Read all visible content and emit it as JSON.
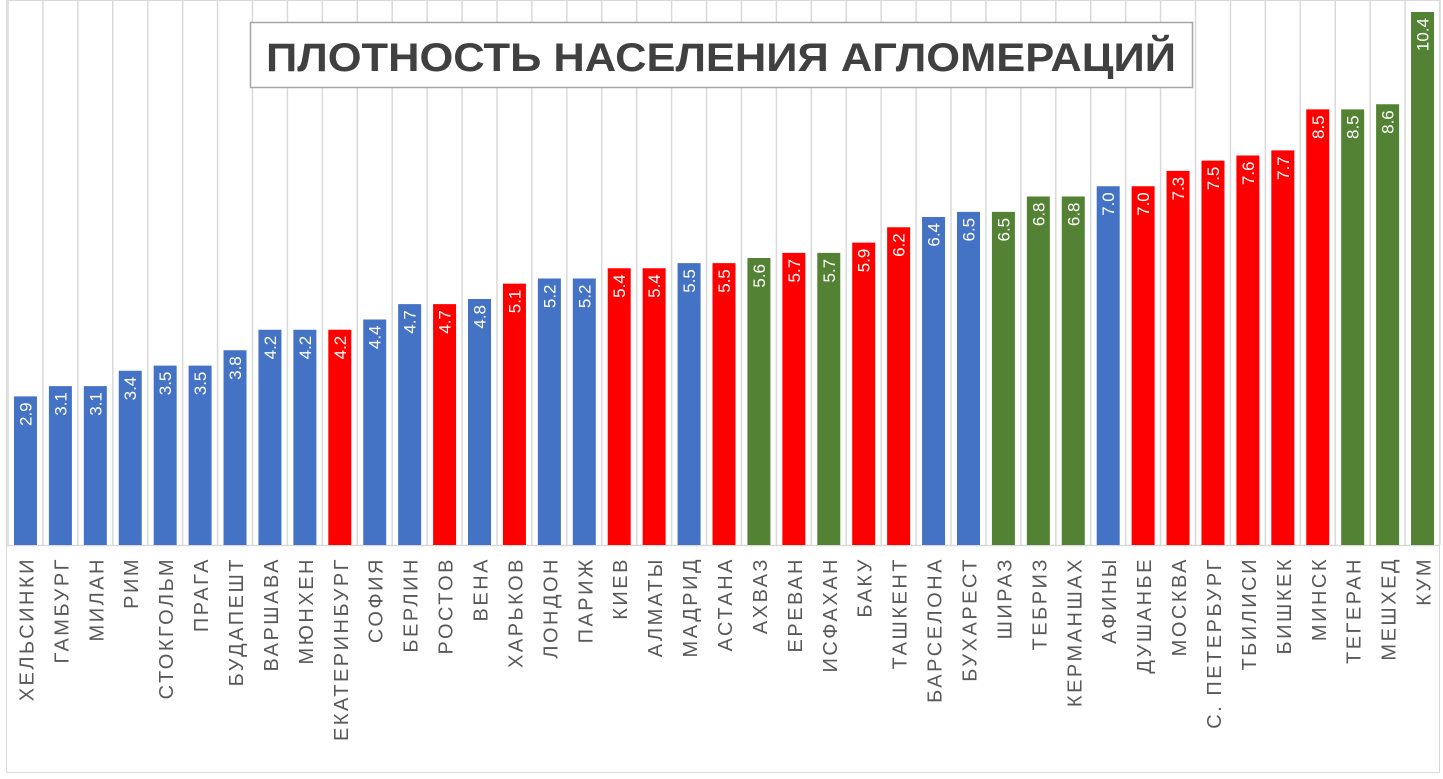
{
  "chart_data": {
    "type": "bar",
    "title": "ПЛОТНОСТЬ НАСЕЛЕНИЯ АГЛОМЕРАЦИЙ",
    "xlabel": "",
    "ylabel": "",
    "ylim": [
      0,
      10.4
    ],
    "grid": "vertical",
    "legend": "none",
    "colors": {
      "blue": "#4472C4",
      "red": "#FF0000",
      "green": "#548235"
    },
    "categories": [
      "ХЕЛЬСИНКИ",
      "ГАМБУРГ",
      "МИЛАН",
      "РИМ",
      "СТОКГОЛЬМ",
      "ПРАГА",
      "БУДАПЕШТ",
      "ВАРШАВА",
      "МЮНХЕН",
      "ЕКАТЕРИНБУРГ",
      "СОФИЯ",
      "БЕРЛИН",
      "РОСТОВ",
      "ВЕНА",
      "ХАРЬКОВ",
      "ЛОНДОН",
      "ПАРИЖ",
      "КИЕВ",
      "АЛМАТЫ",
      "МАДРИД",
      "АСТАНА",
      "АХВАЗ",
      "ЕРЕВАН",
      "ИСФАХАН",
      "БАКУ",
      "ТАШКЕНТ",
      "БАРСЕЛОНА",
      "БУХАРЕСТ",
      "ШИРАЗ",
      "ТЕБРИЗ",
      "КЕРМАНШАХ",
      "АФИНЫ",
      "ДУШАНБЕ",
      "МОСКВА",
      "С. ПЕТЕРБУРГ",
      "ТБИЛИСИ",
      "БИШКЕК",
      "МИНСК",
      "ТЕГЕРАН",
      "МЕШХЕД",
      "КУМ"
    ],
    "values": [
      2.9,
      3.1,
      3.1,
      3.4,
      3.5,
      3.5,
      3.8,
      4.2,
      4.2,
      4.2,
      4.4,
      4.7,
      4.7,
      4.8,
      5.1,
      5.2,
      5.2,
      5.4,
      5.4,
      5.5,
      5.5,
      5.6,
      5.7,
      5.7,
      5.9,
      6.2,
      6.4,
      6.5,
      6.5,
      6.8,
      6.8,
      7.0,
      7.0,
      7.3,
      7.5,
      7.6,
      7.7,
      8.5,
      8.5,
      8.6,
      10.4
    ],
    "value_labels": [
      "2.9",
      "3.1",
      "3.1",
      "3.4",
      "3.5",
      "3.5",
      "3.8",
      "4.2",
      "4.2",
      "4.2",
      "4.4",
      "4.7",
      "4.7",
      "4.8",
      "5.1",
      "5.2",
      "5.2",
      "5.4",
      "5.4",
      "5.5",
      "5.5",
      "5.6",
      "5.7",
      "5.7",
      "5.9",
      "6.2",
      "6.4",
      "6.5",
      "6.5",
      "6.8",
      "6.8",
      "7.0",
      "7.0",
      "7.3",
      "7.5",
      "7.6",
      "7.7",
      "8.5",
      "8.5",
      "8.6",
      "10.4"
    ],
    "bar_colors": [
      "blue",
      "blue",
      "blue",
      "blue",
      "blue",
      "blue",
      "blue",
      "blue",
      "blue",
      "red",
      "blue",
      "blue",
      "red",
      "blue",
      "red",
      "blue",
      "blue",
      "red",
      "red",
      "blue",
      "red",
      "green",
      "red",
      "green",
      "red",
      "red",
      "blue",
      "blue",
      "green",
      "green",
      "green",
      "blue",
      "red",
      "red",
      "red",
      "red",
      "red",
      "red",
      "green",
      "green",
      "green"
    ]
  }
}
